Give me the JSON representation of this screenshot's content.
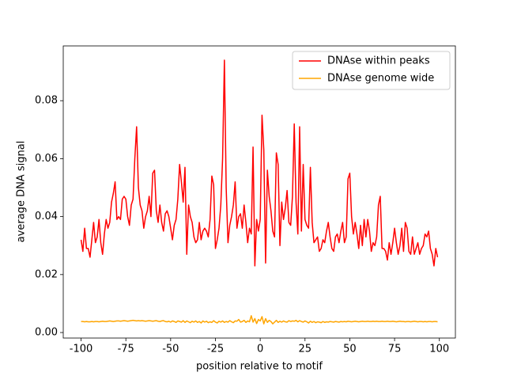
{
  "chart_data": {
    "type": "line",
    "xlabel": "position relative to motif",
    "ylabel": "average DNA signal",
    "x": [
      -100,
      -99,
      -98,
      -97,
      -96,
      -95,
      -94,
      -93,
      -92,
      -91,
      -90,
      -89,
      -88,
      -87,
      -86,
      -85,
      -84,
      -83,
      -82,
      -81,
      -80,
      -79,
      -78,
      -77,
      -76,
      -75,
      -74,
      -73,
      -72,
      -71,
      -70,
      -69,
      -68,
      -67,
      -66,
      -65,
      -64,
      -63,
      -62,
      -61,
      -60,
      -59,
      -58,
      -57,
      -56,
      -55,
      -54,
      -53,
      -52,
      -51,
      -50,
      -49,
      -48,
      -47,
      -46,
      -45,
      -44,
      -43,
      -42,
      -41,
      -40,
      -39,
      -38,
      -37,
      -36,
      -35,
      -34,
      -33,
      -32,
      -31,
      -30,
      -29,
      -28,
      -27,
      -26,
      -25,
      -24,
      -23,
      -22,
      -21,
      -20,
      -19,
      -18,
      -17,
      -16,
      -15,
      -14,
      -13,
      -12,
      -11,
      -10,
      -9,
      -8,
      -7,
      -6,
      -5,
      -4,
      -3,
      -2,
      -1,
      0,
      1,
      2,
      3,
      4,
      5,
      6,
      7,
      8,
      9,
      10,
      11,
      12,
      13,
      14,
      15,
      16,
      17,
      18,
      19,
      20,
      21,
      22,
      23,
      24,
      25,
      26,
      27,
      28,
      29,
      30,
      31,
      32,
      33,
      34,
      35,
      36,
      37,
      38,
      39,
      40,
      41,
      42,
      43,
      44,
      45,
      46,
      47,
      48,
      49,
      50,
      51,
      52,
      53,
      54,
      55,
      56,
      57,
      58,
      59,
      60,
      61,
      62,
      63,
      64,
      65,
      66,
      67,
      68,
      69,
      70,
      71,
      72,
      73,
      74,
      75,
      76,
      77,
      78,
      79,
      80,
      81,
      82,
      83,
      84,
      85,
      86,
      87,
      88,
      89,
      90,
      91,
      92,
      93,
      94,
      95,
      96,
      97,
      98,
      99
    ],
    "series": [
      {
        "name": "DNAse within peaks",
        "color": "#ff0000",
        "values": [
          0.032,
          0.028,
          0.036,
          0.029,
          0.029,
          0.026,
          0.032,
          0.038,
          0.031,
          0.033,
          0.039,
          0.031,
          0.027,
          0.034,
          0.039,
          0.036,
          0.038,
          0.045,
          0.048,
          0.052,
          0.039,
          0.04,
          0.039,
          0.046,
          0.047,
          0.046,
          0.04,
          0.037,
          0.044,
          0.046,
          0.06,
          0.071,
          0.05,
          0.044,
          0.042,
          0.036,
          0.04,
          0.042,
          0.047,
          0.04,
          0.055,
          0.056,
          0.042,
          0.038,
          0.044,
          0.038,
          0.035,
          0.041,
          0.042,
          0.04,
          0.036,
          0.032,
          0.037,
          0.039,
          0.046,
          0.058,
          0.052,
          0.045,
          0.057,
          0.027,
          0.044,
          0.04,
          0.038,
          0.033,
          0.031,
          0.032,
          0.038,
          0.032,
          0.035,
          0.036,
          0.035,
          0.033,
          0.039,
          0.054,
          0.051,
          0.029,
          0.032,
          0.036,
          0.044,
          0.06,
          0.094,
          0.05,
          0.031,
          0.037,
          0.04,
          0.044,
          0.052,
          0.036,
          0.04,
          0.041,
          0.036,
          0.044,
          0.038,
          0.031,
          0.036,
          0.034,
          0.064,
          0.023,
          0.039,
          0.035,
          0.039,
          0.075,
          0.063,
          0.024,
          0.056,
          0.047,
          0.042,
          0.035,
          0.033,
          0.062,
          0.058,
          0.03,
          0.045,
          0.039,
          0.043,
          0.049,
          0.038,
          0.037,
          0.047,
          0.072,
          0.045,
          0.034,
          0.071,
          0.035,
          0.058,
          0.039,
          0.037,
          0.036,
          0.057,
          0.038,
          0.031,
          0.032,
          0.033,
          0.028,
          0.029,
          0.032,
          0.031,
          0.035,
          0.038,
          0.033,
          0.029,
          0.028,
          0.033,
          0.034,
          0.031,
          0.035,
          0.038,
          0.031,
          0.033,
          0.053,
          0.055,
          0.04,
          0.034,
          0.038,
          0.034,
          0.029,
          0.037,
          0.03,
          0.039,
          0.033,
          0.039,
          0.035,
          0.028,
          0.031,
          0.03,
          0.033,
          0.044,
          0.047,
          0.029,
          0.029,
          0.028,
          0.025,
          0.031,
          0.027,
          0.031,
          0.036,
          0.031,
          0.027,
          0.03,
          0.036,
          0.028,
          0.038,
          0.036,
          0.028,
          0.027,
          0.033,
          0.027,
          0.029,
          0.031,
          0.027,
          0.029,
          0.03,
          0.034,
          0.033,
          0.035,
          0.029,
          0.027,
          0.023,
          0.029,
          0.026
        ]
      },
      {
        "name": "DNAse genome wide",
        "color": "#ffa500",
        "values": [
          0.0038,
          0.0038,
          0.0037,
          0.0038,
          0.0037,
          0.0037,
          0.0038,
          0.0037,
          0.0038,
          0.0038,
          0.0037,
          0.0038,
          0.0039,
          0.0038,
          0.0038,
          0.0039,
          0.004,
          0.0039,
          0.0038,
          0.0039,
          0.004,
          0.004,
          0.0039,
          0.004,
          0.0041,
          0.004,
          0.0039,
          0.004,
          0.0041,
          0.0042,
          0.0041,
          0.004,
          0.0041,
          0.004,
          0.0041,
          0.004,
          0.0039,
          0.004,
          0.0041,
          0.004,
          0.0039,
          0.004,
          0.0041,
          0.0039,
          0.0038,
          0.004,
          0.0041,
          0.0038,
          0.0037,
          0.0039,
          0.0036,
          0.004,
          0.0038,
          0.0035,
          0.004,
          0.0038,
          0.0036,
          0.0041,
          0.0035,
          0.004,
          0.0037,
          0.0034,
          0.0039,
          0.0036,
          0.004,
          0.0035,
          0.0038,
          0.0033,
          0.004,
          0.0036,
          0.0039,
          0.0034,
          0.0037,
          0.0035,
          0.0041,
          0.0036,
          0.0033,
          0.0039,
          0.0036,
          0.004,
          0.0035,
          0.0038,
          0.0036,
          0.0041,
          0.0037,
          0.0034,
          0.004,
          0.0039,
          0.0045,
          0.0036,
          0.0038,
          0.0042,
          0.0035,
          0.004,
          0.0037,
          0.0058,
          0.0036,
          0.0048,
          0.0031,
          0.0045,
          0.004,
          0.0055,
          0.003,
          0.0048,
          0.0035,
          0.0042,
          0.0038,
          0.003,
          0.0036,
          0.0042,
          0.0035,
          0.0039,
          0.0036,
          0.004,
          0.0037,
          0.0036,
          0.0041,
          0.0038,
          0.004,
          0.0039,
          0.0042,
          0.0037,
          0.0041,
          0.0038,
          0.0036,
          0.004,
          0.0037,
          0.0033,
          0.0039,
          0.0035,
          0.0038,
          0.0034,
          0.0037,
          0.0036,
          0.0034,
          0.0038,
          0.0035,
          0.0037,
          0.0036,
          0.0038,
          0.0037,
          0.0036,
          0.0038,
          0.0037,
          0.0036,
          0.0038,
          0.0037,
          0.0038,
          0.0037,
          0.0039,
          0.0038,
          0.0037,
          0.0038,
          0.0039,
          0.0038,
          0.0037,
          0.0038,
          0.0039,
          0.0038,
          0.0038,
          0.0039,
          0.0038,
          0.0038,
          0.0039,
          0.0038,
          0.0039,
          0.0038,
          0.0038,
          0.0039,
          0.0038,
          0.0038,
          0.0039,
          0.0038,
          0.0038,
          0.0039,
          0.0038,
          0.0037,
          0.0038,
          0.0039,
          0.0038,
          0.0038,
          0.0037,
          0.0038,
          0.0038,
          0.0037,
          0.0038,
          0.0039,
          0.0038,
          0.0037,
          0.0038,
          0.0038,
          0.0037,
          0.0038,
          0.0037,
          0.0038,
          0.0038,
          0.0037,
          0.0038,
          0.0038,
          0.0037
        ]
      }
    ],
    "xlim": [
      -109.95,
      108.95
    ],
    "xticks": [
      -100,
      -75,
      -50,
      -25,
      0,
      25,
      50,
      75,
      100
    ],
    "ylim": [
      -0.0019,
      0.0989
    ],
    "yticks": [
      {
        "value": 0,
        "label": "0.00"
      },
      {
        "value": 0.02,
        "label": "0.02"
      },
      {
        "value": 0.04,
        "label": "0.04"
      },
      {
        "value": 0.06,
        "label": "0.06"
      },
      {
        "value": 0.08,
        "label": "0.08"
      }
    ],
    "legend": "upper right"
  }
}
